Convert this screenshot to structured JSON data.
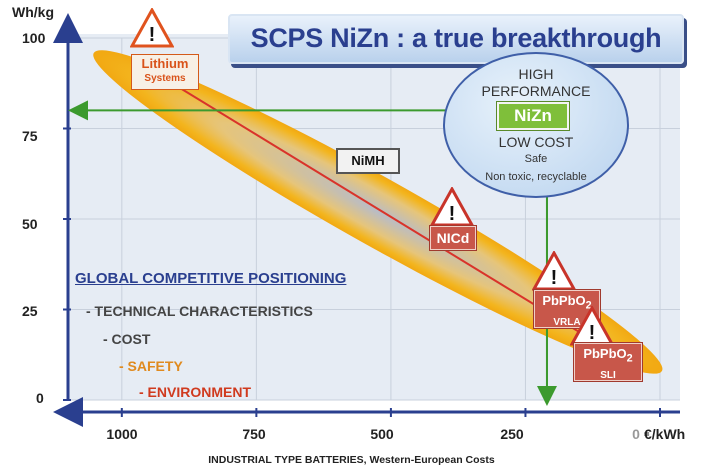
{
  "title": "SCPS NiZn : a true breakthrough",
  "chart_data": {
    "type": "scatter",
    "xlabel": "INDUSTRIAL TYPE BATTERIES, Western-European Costs",
    "x_unit": "€/kWh",
    "ylabel": "Wh/kg",
    "x_ticks": [
      "1000",
      "750",
      "500",
      "250",
      "0"
    ],
    "y_ticks": [
      "100",
      "75",
      "50",
      "25",
      "0"
    ],
    "xlim": [
      1100,
      0
    ],
    "ylim": [
      0,
      100
    ],
    "x_reversed": true,
    "grid": true,
    "points": [
      {
        "name": "Lithium",
        "sub": "Systems",
        "x": 950,
        "y": 92,
        "warning": true
      },
      {
        "name": "NiMH",
        "sub": "",
        "x": 515,
        "y": 66,
        "warning": false
      },
      {
        "name": "NICd",
        "sub": "",
        "x": 355,
        "y": 45,
        "warning": true
      },
      {
        "name": "PbPbO",
        "sub_script": "2",
        "sub": "VRLA",
        "x": 165,
        "y": 27,
        "warning": true
      },
      {
        "name": "PbPbO",
        "sub_script": "2",
        "sub": "SLI",
        "x": 80,
        "y": 13,
        "warning": true
      }
    ],
    "highlight": {
      "lines": [
        "HIGH",
        "PERFORMANCE"
      ],
      "badge": "NiZn",
      "cost": "LOW COST",
      "notes": [
        "Safe",
        "Non toxic, recyclable"
      ],
      "target_x": 210,
      "target_y": 80
    },
    "colors": {
      "band": "#f3b51e",
      "trend": "#d9332a",
      "axis": "#2a3f8f",
      "target": "#3c9a2e",
      "title": "#2a3f8f"
    }
  },
  "legend": {
    "title": "GLOBAL COMPETITIVE POSITIONING",
    "items": [
      {
        "text": "- TECHNICAL CHARACTERISTICS",
        "color": "#444444"
      },
      {
        "text": "- COST",
        "color": "#444444"
      },
      {
        "text": "- SAFETY",
        "color": "#e08a1e"
      },
      {
        "text": "- ENVIRONMENT",
        "color": "#d03a1e"
      }
    ]
  }
}
